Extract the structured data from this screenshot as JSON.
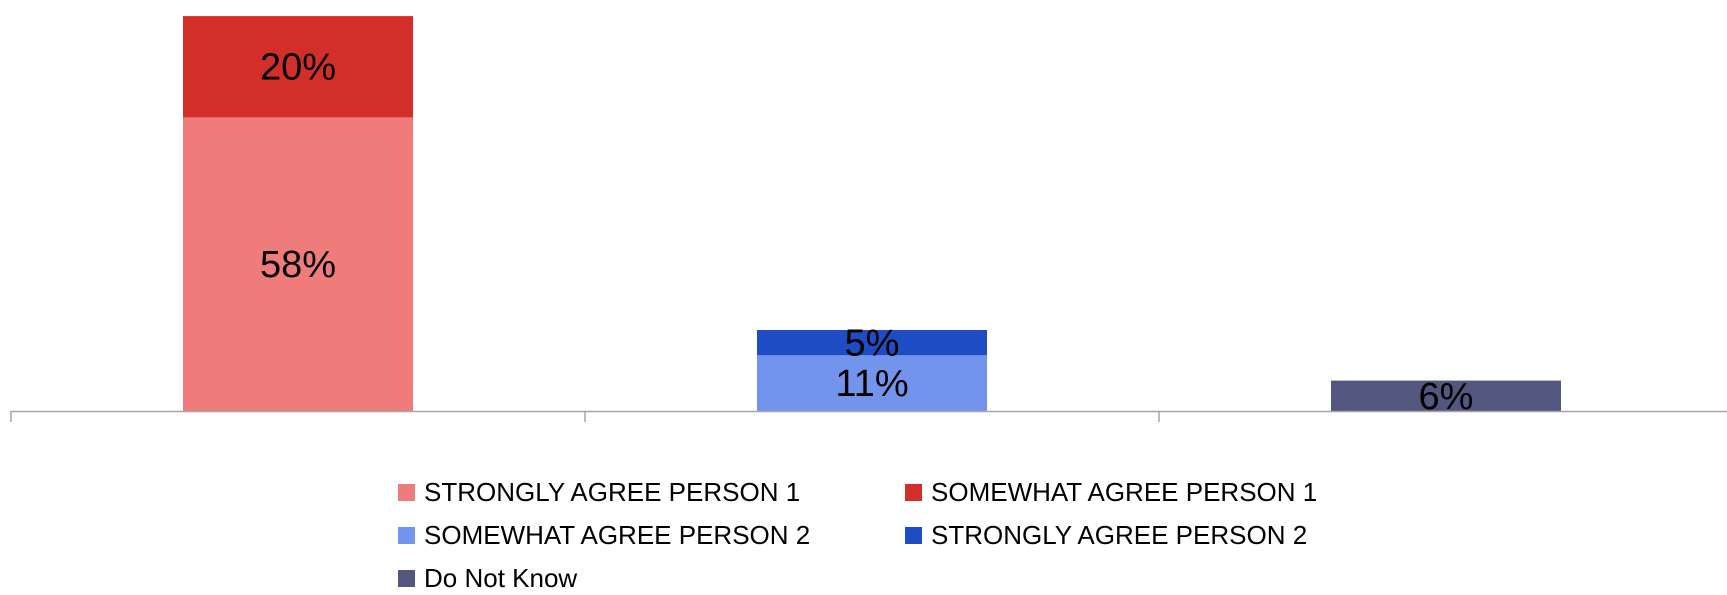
{
  "chart_data": {
    "type": "bar",
    "stacked": true,
    "categories": [
      "",
      "",
      ""
    ],
    "ylim": [
      0,
      80
    ],
    "grid": false,
    "legend_position": "bottom",
    "series": [
      {
        "name": "STRONGLY AGREE PERSON 1",
        "color": "#f07b7b",
        "values": [
          58,
          null,
          null
        ],
        "labels": [
          "58%",
          null,
          null
        ]
      },
      {
        "name": "SOMEWHAT AGREE PERSON 1",
        "color": "#d22f2b",
        "values": [
          20,
          null,
          null
        ],
        "labels": [
          "20%",
          null,
          null
        ]
      },
      {
        "name": "SOMEWHAT AGREE PERSON 2",
        "color": "#7294ec",
        "values": [
          null,
          11,
          null
        ],
        "labels": [
          null,
          "11%",
          null
        ]
      },
      {
        "name": "STRONGLY AGREE PERSON 2",
        "color": "#1e4cc4",
        "values": [
          null,
          5,
          null
        ],
        "labels": [
          null,
          "5%",
          null
        ]
      },
      {
        "name": "Do Not Know",
        "color": "#535780",
        "values": [
          null,
          null,
          6
        ],
        "labels": [
          null,
          null,
          "6%"
        ]
      }
    ]
  },
  "legend": {
    "items": [
      {
        "label": "STRONGLY AGREE PERSON 1",
        "color": "#f07b7b"
      },
      {
        "label": "SOMEWHAT AGREE PERSON 1",
        "color": "#d22f2b"
      },
      {
        "label": "SOMEWHAT AGREE PERSON 2",
        "color": "#7294ec"
      },
      {
        "label": "STRONGLY AGREE PERSON 2",
        "color": "#1e4cc4"
      },
      {
        "label": "Do Not Know",
        "color": "#535780"
      }
    ]
  }
}
